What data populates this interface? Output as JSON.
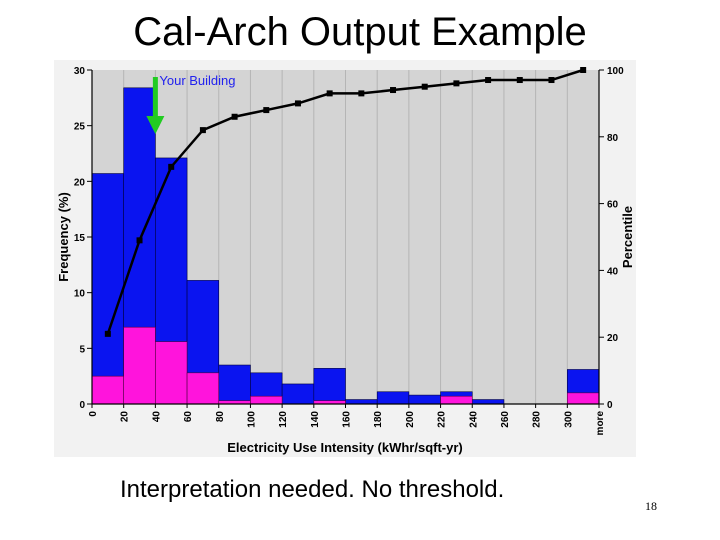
{
  "slide": {
    "title": "Cal-Arch Output Example",
    "caption": "Interpretation needed. No threshold.",
    "page_number": "18"
  },
  "colors": {
    "frame_bg": "#f2f2f2",
    "plot_bg": "#d4d4d4",
    "total_bar": "#0a14f0",
    "sub_bar": "#ff14dc",
    "line": "#000000",
    "arrow": "#22cc22",
    "annotation": "#2222ee"
  },
  "chart_data": {
    "type": "bar",
    "xlabel": "Electricity Use Intensity (kWhr/sqft-yr)",
    "ylabel": "Frequency (%)",
    "y2label": "Percentile",
    "ylim": [
      0,
      30
    ],
    "y2lim": [
      0,
      100
    ],
    "yticks": [
      "0",
      "5",
      "10",
      "15",
      "20",
      "25",
      "30"
    ],
    "y2ticks": [
      "0",
      "20",
      "40",
      "60",
      "80",
      "100"
    ],
    "xtick_labels": [
      "0",
      "20",
      "40",
      "60",
      "80",
      "100",
      "120",
      "140",
      "160",
      "180",
      "200",
      "220",
      "240",
      "260",
      "280",
      "300",
      "more"
    ],
    "bin_count": 16,
    "grid": "vertical",
    "series": [
      {
        "kind": "bar",
        "values": [
          20.7,
          28.4,
          22.1,
          11.1,
          3.5,
          2.8,
          1.8,
          3.2,
          0.4,
          1.1,
          0.8,
          1.1,
          0.4,
          0,
          0,
          3.1
        ]
      },
      {
        "kind": "bar",
        "values": [
          2.5,
          6.9,
          5.6,
          2.8,
          0.3,
          0.7,
          0,
          0.3,
          0,
          0,
          0,
          0.7,
          0,
          0,
          0,
          1.0
        ]
      },
      {
        "kind": "line",
        "axis": "right",
        "points": [
          [
            10,
            21
          ],
          [
            30,
            49
          ],
          [
            50,
            71
          ],
          [
            70,
            82
          ],
          [
            90,
            86
          ],
          [
            110,
            88
          ],
          [
            130,
            90
          ],
          [
            150,
            93
          ],
          [
            170,
            93
          ],
          [
            190,
            94
          ],
          [
            210,
            95
          ],
          [
            230,
            96
          ],
          [
            250,
            97
          ],
          [
            270,
            97
          ],
          [
            290,
            97
          ],
          [
            310,
            100
          ]
        ]
      }
    ],
    "annotations": [
      {
        "text": "Your Building",
        "x": 40
      }
    ]
  }
}
